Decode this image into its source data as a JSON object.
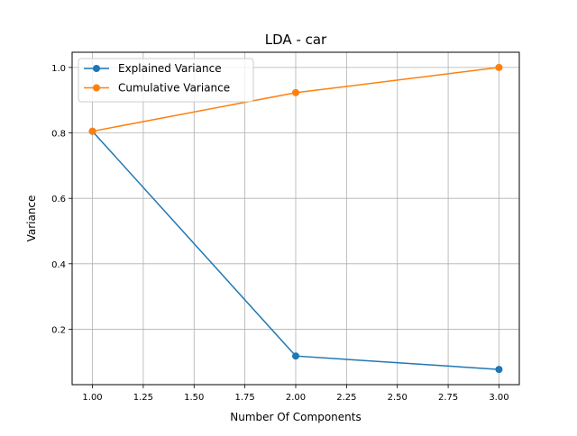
{
  "chart_data": {
    "type": "line",
    "title": "LDA - car",
    "xlabel": "Number Of Components",
    "ylabel": "Variance",
    "x": [
      1,
      2,
      3
    ],
    "series": [
      {
        "name": "Explained Variance",
        "values": [
          0.805,
          0.118,
          0.077
        ],
        "color": "#1f77b4"
      },
      {
        "name": "Cumulative Variance",
        "values": [
          0.805,
          0.923,
          1.0
        ],
        "color": "#ff7f0e"
      }
    ],
    "xlim": [
      0.9,
      3.1
    ],
    "ylim": [
      0.0305,
      1.0465
    ],
    "xticks": [
      1.0,
      1.25,
      1.5,
      1.75,
      2.0,
      2.25,
      2.5,
      2.75,
      3.0
    ],
    "xtick_labels": [
      "1.00",
      "1.25",
      "1.50",
      "1.75",
      "2.00",
      "2.25",
      "2.50",
      "2.75",
      "3.00"
    ],
    "yticks": [
      0.2,
      0.4,
      0.6,
      0.8,
      1.0
    ],
    "ytick_labels": [
      "0.2",
      "0.4",
      "0.6",
      "0.8",
      "1.0"
    ],
    "grid": true,
    "legend_position": "top-left",
    "marker": "circle"
  }
}
